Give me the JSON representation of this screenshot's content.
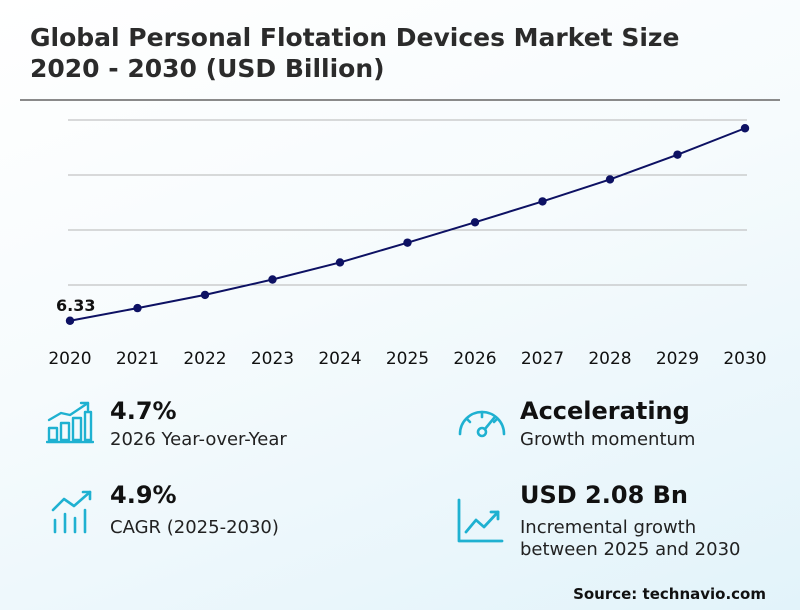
{
  "header": {
    "title_line1": "Global Personal Flotation Devices Market Size",
    "title_line2": "2020 - 2030 (USD Billion)"
  },
  "chart_data": {
    "type": "line",
    "x": [
      "2020",
      "2021",
      "2022",
      "2023",
      "2024",
      "2025",
      "2026",
      "2027",
      "2028",
      "2029",
      "2030"
    ],
    "series": [
      {
        "values": [
          6.33,
          6.56,
          6.8,
          7.08,
          7.39,
          7.75,
          8.12,
          8.5,
          8.9,
          9.35,
          9.83
        ]
      }
    ],
    "annotations": [
      {
        "x": "2020",
        "label": "6.33"
      }
    ],
    "ylim": [
      5.98,
      9.98
    ],
    "grid": true,
    "line_color": "#0d1163",
    "marker_color": "#0d1163"
  },
  "stats": {
    "yoy": {
      "value": "4.7%",
      "desc": "2026 Year-over-Year",
      "icon": "bar-chart-growth-icon"
    },
    "momentum": {
      "value": "Accelerating",
      "desc": "Growth momentum",
      "icon": "speedometer-icon"
    },
    "cagr": {
      "value": "4.9%",
      "desc": "CAGR (2025-2030)",
      "icon": "trend-bars-icon"
    },
    "incremental": {
      "value": "USD 2.08 Bn",
      "desc_line1": "Incremental growth",
      "desc_line2": "between 2025 and 2030",
      "icon": "line-chart-icon"
    }
  },
  "accent_color": "#1fb1d1",
  "footer": {
    "source": "Source: technavio.com"
  }
}
